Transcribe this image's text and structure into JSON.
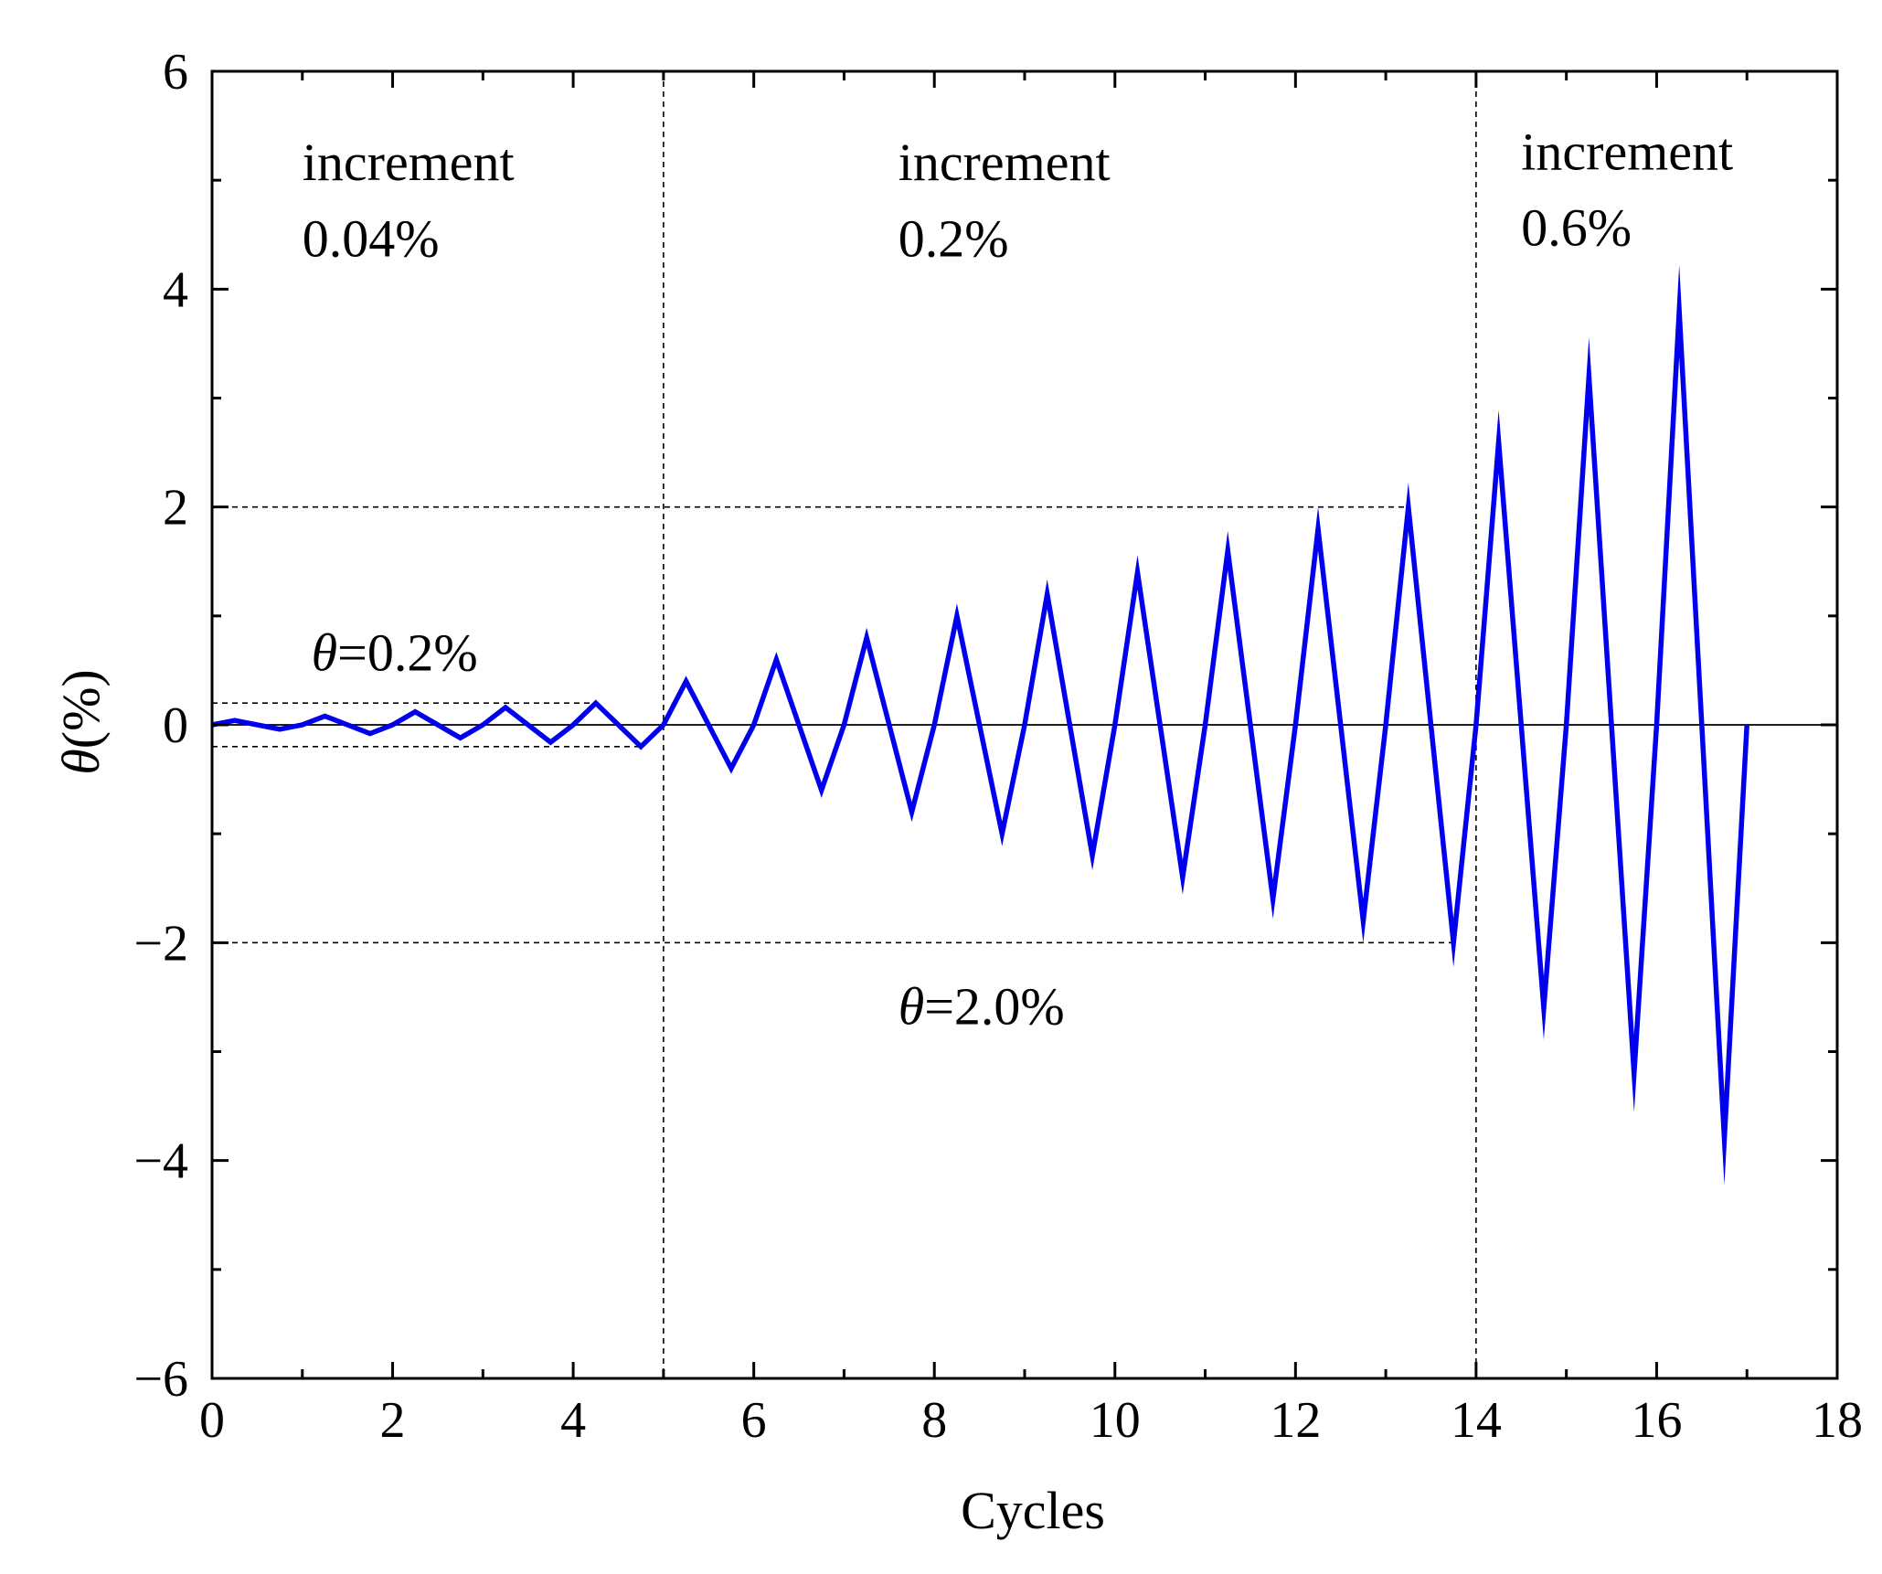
{
  "chart_data": {
    "type": "line",
    "title": "",
    "xlabel": "Cycles",
    "ylabel_symbol": "θ",
    "ylabel_unit": "(%)",
    "xlim": [
      0,
      18
    ],
    "ylim": [
      -6,
      6
    ],
    "xticks": [
      0,
      2,
      4,
      6,
      8,
      10,
      12,
      14,
      16,
      18
    ],
    "yticks": [
      -6,
      -4,
      -2,
      0,
      2,
      4,
      6
    ],
    "xtick_labels": [
      "0",
      "2",
      "4",
      "6",
      "8",
      "10",
      "12",
      "14",
      "16",
      "18"
    ],
    "ytick_labels": [
      "−6",
      "−4",
      "−2",
      "0",
      "2",
      "4",
      "6"
    ],
    "grid": false,
    "line_color": "#0000ee",
    "series": [
      {
        "name": "θ",
        "x": [
          0,
          0.25,
          0.75,
          1,
          1.25,
          1.75,
          2,
          2.25,
          2.75,
          3,
          3.25,
          3.75,
          4,
          4.25,
          4.75,
          5,
          5.25,
          5.75,
          6,
          6.25,
          6.75,
          7,
          7.25,
          7.75,
          8,
          8.25,
          8.75,
          9,
          9.25,
          9.75,
          10,
          10.25,
          10.75,
          11,
          11.25,
          11.75,
          12,
          12.25,
          12.75,
          13,
          13.25,
          13.75,
          14,
          14.25,
          14.75,
          15,
          15.25,
          15.75,
          16,
          16.25,
          16.75,
          17
        ],
        "y": [
          0,
          0.04,
          -0.04,
          0,
          0.08,
          -0.08,
          0,
          0.12,
          -0.12,
          0,
          0.16,
          -0.16,
          0,
          0.2,
          -0.2,
          0,
          0.4,
          -0.4,
          0,
          0.6,
          -0.6,
          0,
          0.8,
          -0.8,
          0,
          1.0,
          -1.0,
          0,
          1.2,
          -1.2,
          0,
          1.4,
          -1.4,
          0,
          1.6,
          -1.6,
          0,
          1.8,
          -1.8,
          0,
          2.0,
          -2.0,
          0,
          2.6,
          -2.6,
          0,
          3.2,
          -3.2,
          0,
          3.8,
          -3.8,
          0
        ]
      }
    ],
    "reference_lines": {
      "vertical_x": [
        5,
        14
      ],
      "horizontal": [
        {
          "y": 0.2,
          "x_from": 0,
          "x_to": 4.25
        },
        {
          "y": -0.2,
          "x_from": 0,
          "x_to": 4.75
        },
        {
          "y": 2.0,
          "x_from": 0,
          "x_to": 13.25
        },
        {
          "y": -2.0,
          "x_from": 0,
          "x_to": 13.75
        }
      ],
      "zero_line": true
    },
    "annotations": [
      {
        "id": "inc1",
        "line1": "increment",
        "line2": "0.04%",
        "x": 1.0,
        "y1": 5.0,
        "y2": 4.3
      },
      {
        "id": "inc2",
        "line1": "increment",
        "line2": "0.2%",
        "x": 7.6,
        "y1": 5.0,
        "y2": 4.3
      },
      {
        "id": "inc3",
        "line1": "increment",
        "line2": "0.6%",
        "x": 14.5,
        "y1": 5.1,
        "y2": 4.4
      },
      {
        "id": "theta02",
        "symbol": "θ",
        "text": "=0.2%",
        "x": 1.1,
        "y": 0.5
      },
      {
        "id": "theta20",
        "symbol": "θ",
        "text": "=2.0%",
        "x": 7.6,
        "y": -2.75
      }
    ]
  }
}
